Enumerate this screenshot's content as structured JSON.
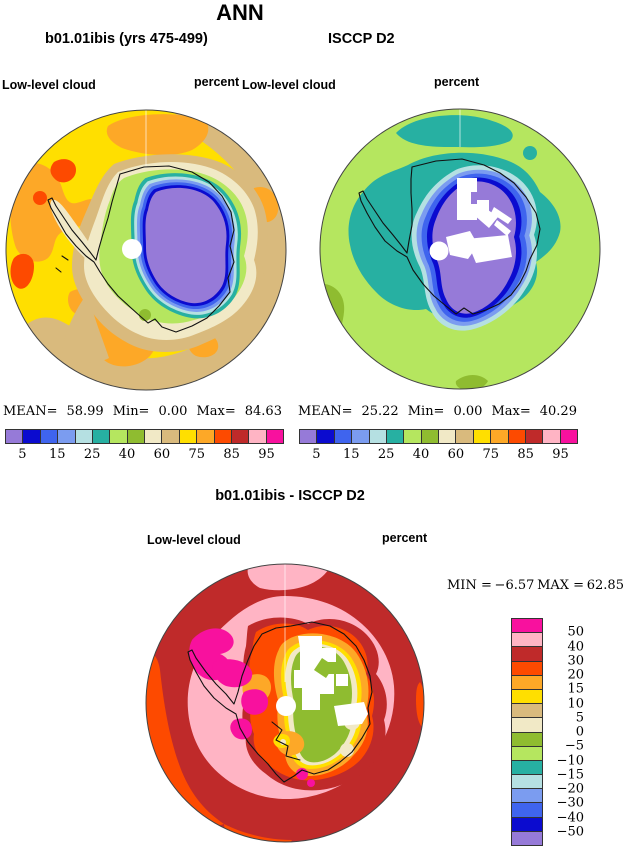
{
  "title": "ANN",
  "palette": {
    "colors_low_to_high": [
      "#967ad8",
      "#0b0bcf",
      "#3f64ee",
      "#7b9cf0",
      "#b5e0e2",
      "#27b0a2",
      "#b5e65f",
      "#8fbc30",
      "#f1e9c6",
      "#d9ba7d",
      "#ffdf00",
      "#fda827",
      "#fd4a00",
      "#bf2a2a",
      "#ffb4c4",
      "#f8119e"
    ],
    "tick_labels": [
      "5",
      "15",
      "25",
      "40",
      "60",
      "75",
      "85",
      "95"
    ],
    "tick_boundary_indices": [
      1,
      3,
      5,
      7,
      9,
      11,
      13,
      15
    ]
  },
  "diff_palette": {
    "tick_labels_top_to_bottom": [
      "50",
      "40",
      "30",
      "20",
      "15",
      "10",
      "5",
      "0",
      "−5",
      "−10",
      "−15",
      "−20",
      "−30",
      "−40",
      "−50"
    ]
  },
  "panels": {
    "model": {
      "subtitle": "b01.01ibis (yrs 475-499)",
      "field": "Low-level cloud",
      "units": "percent",
      "stats": {
        "mean_label": "MEAN=",
        "mean": "58.99",
        "min_label": "Min=",
        "min": "0.00",
        "max_label": "Max=",
        "max": "84.63"
      }
    },
    "obs": {
      "subtitle": "ISCCP D2",
      "field": "Low-level cloud",
      "units": "percent",
      "stats": {
        "mean_label": "MEAN=",
        "mean": "25.22",
        "min_label": "Min=",
        "min": "0.00",
        "max_label": "Max=",
        "max": "40.29"
      }
    },
    "diff": {
      "subtitle": "b01.01ibis - ISCCP D2",
      "field": "Low-level cloud",
      "units": "percent",
      "stats": {
        "min_label": "MIN =",
        "min": "−6.57",
        "max_label": "MAX =",
        "max": "62.85"
      }
    }
  },
  "chart_data": [
    {
      "type": "heatmap",
      "title": "b01.01ibis (yrs 475-499)",
      "variable": "Low-level cloud",
      "units": "percent",
      "projection": "south polar stereographic",
      "season": "ANN",
      "mean": 58.99,
      "min": 0.0,
      "max": 84.63,
      "colorbar_labeled_levels": [
        5,
        15,
        25,
        40,
        60,
        75,
        85,
        95
      ],
      "legend_position": "below"
    },
    {
      "type": "heatmap",
      "title": "ISCCP D2",
      "variable": "Low-level cloud",
      "units": "percent",
      "projection": "south polar stereographic",
      "season": "ANN",
      "mean": 25.22,
      "min": 0.0,
      "max": 40.29,
      "colorbar_labeled_levels": [
        5,
        15,
        25,
        40,
        60,
        75,
        85,
        95
      ],
      "legend_position": "below"
    },
    {
      "type": "heatmap",
      "title": "b01.01ibis - ISCCP D2",
      "variable": "Low-level cloud",
      "units": "percent",
      "projection": "south polar stereographic",
      "season": "ANN",
      "min": -6.57,
      "max": 62.85,
      "colorbar_labeled_levels": [
        50,
        40,
        30,
        20,
        15,
        10,
        5,
        0,
        -5,
        -10,
        -15,
        -20,
        -30,
        -40,
        -50
      ],
      "legend_position": "right"
    }
  ]
}
